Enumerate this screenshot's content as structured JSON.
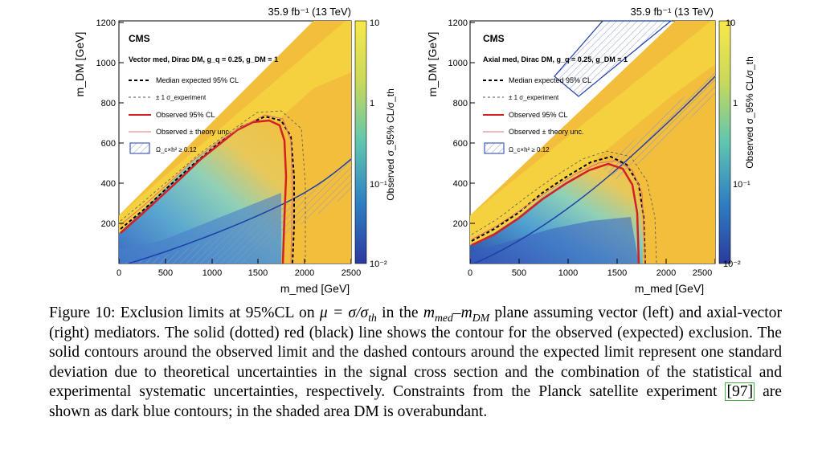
{
  "colors": {
    "observed": "#d42020",
    "theory": "#e07070",
    "expected": "#000000",
    "planck": "#1f3fa8",
    "cmap_low": "#2b3a9e",
    "cmap_mid": "#5fc6b0",
    "cmap_high": "#f8e84a"
  },
  "plots": [
    {
      "lumi": "35.9 fb⁻¹ (13 TeV)",
      "experiment": "CMS",
      "model": "Vector med, Dirac DM, g_q = 0.25, g_DM = 1",
      "legend": [
        {
          "label": "Median expected 95% CL",
          "style": "dashed-black"
        },
        {
          "label": "± 1 σ_experiment",
          "style": "dashed-thin"
        },
        {
          "label": "Observed 95% CL",
          "style": "solid-red"
        },
        {
          "label": "Observed ± theory unc.",
          "style": "thin-red"
        },
        {
          "label": "Ω_c×h² ≥ 0.12",
          "style": "hatched-blue"
        }
      ],
      "x_ticks": [
        "0",
        "500",
        "1000",
        "1500",
        "2000",
        "2500"
      ],
      "y_ticks": [
        "200",
        "400",
        "600",
        "800",
        "1000",
        "1200"
      ],
      "z_ticks": [
        "10⁻²",
        "10⁻¹",
        "1",
        "10"
      ],
      "y_label": "m_DM [GeV]",
      "z_label": "Observed σ_95% CL/σ_th"
    },
    {
      "lumi": "35.9 fb⁻¹ (13 TeV)",
      "experiment": "CMS",
      "model": "Axial med, Dirac DM, g_q = 0.25, g_DM = 1",
      "legend": [
        {
          "label": "Median expected 95% CL",
          "style": "dashed-black"
        },
        {
          "label": "± 1 σ_experiment",
          "style": "dashed-thin"
        },
        {
          "label": "Observed 95% CL",
          "style": "solid-red"
        },
        {
          "label": "Observed ± theory unc.",
          "style": "thin-red"
        },
        {
          "label": "Ω_c×h² ≥ 0.12",
          "style": "hatched-blue"
        }
      ],
      "x_ticks": [
        "0",
        "500",
        "1000",
        "1500",
        "2000",
        "2500"
      ],
      "y_ticks": [
        "200",
        "400",
        "600",
        "800",
        "1000",
        "1200"
      ],
      "z_ticks": [
        "10⁻²",
        "10⁻¹",
        "1",
        "10"
      ],
      "y_label": "m_DM [GeV]",
      "z_label": "Observed σ_95% CL/σ_th"
    }
  ],
  "x_label": "m_med [GeV]",
  "caption": {
    "figure_label": "Figure 10:",
    "text_1": "Exclusion limits at 95%CL on",
    "mu_expr": "μ = σ/σ",
    "mu_sub": "th",
    "text_2": "in the",
    "plane_sub1": "med",
    "plane_dash": "–",
    "plane_sub2": "DM",
    "text_3": "plane assuming vector (left) and axial-vector (right) mediators. The solid (dotted) red (black) line shows the contour for the observed (expected) exclusion. The solid contours around the observed limit and the dashed contours around the expected limit represent one standard deviation due to theoretical uncertainties in the signal cross section and the combination of the statistical and experimental systematic uncertainties, respectively. Constraints from the Planck satellite experiment",
    "ref": "[97]",
    "text_4": "are shown as dark blue contours; in the shaded area DM is overabundant."
  }
}
